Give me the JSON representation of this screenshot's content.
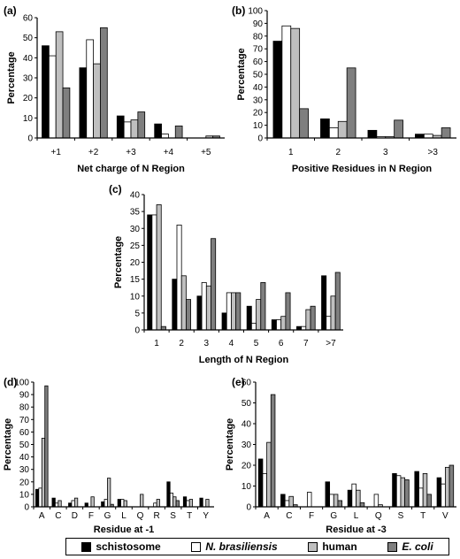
{
  "chart_data": [
    {
      "id": "a",
      "type": "bar",
      "panel_label": "(a)",
      "xlabel": "Net charge of N Region",
      "ylabel": "Percentage",
      "categories": [
        "+1",
        "+2",
        "+3",
        "+4",
        "+5"
      ],
      "ylim": [
        0,
        60
      ],
      "yticks": [
        0,
        10,
        20,
        30,
        40,
        50,
        60
      ],
      "series": [
        {
          "name": "schistosome",
          "values": [
            46,
            35,
            11,
            7,
            0
          ]
        },
        {
          "name": "N. brasiliensis",
          "values": [
            41,
            49,
            8,
            2,
            0
          ]
        },
        {
          "name": "human",
          "values": [
            53,
            37,
            9,
            0,
            1
          ]
        },
        {
          "name": "E. coli",
          "values": [
            25,
            55,
            13,
            6,
            1
          ]
        }
      ]
    },
    {
      "id": "b",
      "type": "bar",
      "panel_label": "(b)",
      "xlabel": "Positive Residues in N Region",
      "ylabel": "Percentage",
      "categories": [
        "1",
        "2",
        "3",
        ">3"
      ],
      "ylim": [
        0,
        100
      ],
      "yticks": [
        0,
        10,
        20,
        30,
        40,
        50,
        60,
        70,
        80,
        90,
        100
      ],
      "series": [
        {
          "name": "schistosome",
          "values": [
            76,
            15,
            6,
            3
          ]
        },
        {
          "name": "N. brasiliensis",
          "values": [
            88,
            8,
            1,
            3
          ]
        },
        {
          "name": "human",
          "values": [
            86,
            13,
            1,
            2
          ]
        },
        {
          "name": "E. coli",
          "values": [
            23,
            55,
            14,
            8
          ]
        }
      ]
    },
    {
      "id": "c",
      "type": "bar",
      "panel_label": "(c)",
      "xlabel": "Length of N Region",
      "ylabel": "Percentage",
      "categories": [
        "1",
        "2",
        "3",
        "4",
        "5",
        "6",
        "7",
        ">7"
      ],
      "ylim": [
        0,
        40
      ],
      "yticks": [
        0,
        5,
        10,
        15,
        20,
        25,
        30,
        35,
        40
      ],
      "series": [
        {
          "name": "schistosome",
          "values": [
            34,
            15,
            10,
            5,
            7,
            3,
            1,
            16
          ]
        },
        {
          "name": "N. brasiliensis",
          "values": [
            34,
            31,
            14,
            11,
            2,
            3,
            1,
            4
          ]
        },
        {
          "name": "human",
          "values": [
            37,
            16,
            13,
            11,
            9,
            4,
            6,
            10
          ]
        },
        {
          "name": "E. coli",
          "values": [
            1,
            9,
            27,
            11,
            14,
            11,
            7,
            17
          ]
        }
      ]
    },
    {
      "id": "d",
      "type": "bar",
      "panel_label": "(d)",
      "xlabel": "Residue at -1",
      "ylabel": "Percentage",
      "categories": [
        "A",
        "C",
        "D",
        "F",
        "G",
        "L",
        "Q",
        "R",
        "S",
        "T",
        "Y"
      ],
      "ylim": [
        0,
        100
      ],
      "yticks": [
        0,
        10,
        20,
        30,
        40,
        50,
        60,
        70,
        80,
        90,
        100
      ],
      "series": [
        {
          "name": "schistosome",
          "values": [
            14,
            7,
            3,
            3,
            4,
            6,
            0,
            0,
            20,
            8,
            7
          ]
        },
        {
          "name": "N. brasiliensis",
          "values": [
            15,
            3,
            5,
            0,
            6,
            6,
            0,
            3,
            11,
            5,
            0
          ]
        },
        {
          "name": "human",
          "values": [
            55,
            5,
            7,
            8,
            23,
            5,
            10,
            6,
            8,
            6,
            6
          ]
        },
        {
          "name": "E. coli",
          "values": [
            97,
            0,
            0,
            0,
            2,
            0,
            0,
            0,
            5,
            0,
            0
          ]
        }
      ]
    },
    {
      "id": "e",
      "type": "bar",
      "panel_label": "(e)",
      "xlabel": "Residue at -3",
      "ylabel": "Percentage",
      "categories": [
        "A",
        "C",
        "F",
        "G",
        "L",
        "Q",
        "S",
        "T",
        "V"
      ],
      "ylim": [
        0,
        60
      ],
      "yticks": [
        0,
        10,
        20,
        30,
        40,
        50,
        60
      ],
      "series": [
        {
          "name": "schistosome",
          "values": [
            23,
            6,
            0,
            12,
            8,
            0,
            16,
            17,
            14
          ]
        },
        {
          "name": "N. brasiliensis",
          "values": [
            16,
            3,
            7,
            6,
            11,
            6,
            15,
            9,
            11
          ]
        },
        {
          "name": "human",
          "values": [
            31,
            5,
            0,
            6,
            8,
            1,
            14,
            16,
            19
          ]
        },
        {
          "name": "E. coli",
          "values": [
            54,
            1,
            0,
            3,
            2,
            0,
            13,
            6,
            20
          ]
        }
      ]
    }
  ],
  "legend": {
    "items": [
      {
        "label": "schistosome",
        "color": "#000000",
        "italic": false
      },
      {
        "label": "N. brasiliensis",
        "color": "#ffffff",
        "italic": true
      },
      {
        "label": "human",
        "color": "#bfbfbf",
        "italic": false
      },
      {
        "label": "E. coli",
        "color": "#7f7f7f",
        "italic": true
      }
    ]
  }
}
